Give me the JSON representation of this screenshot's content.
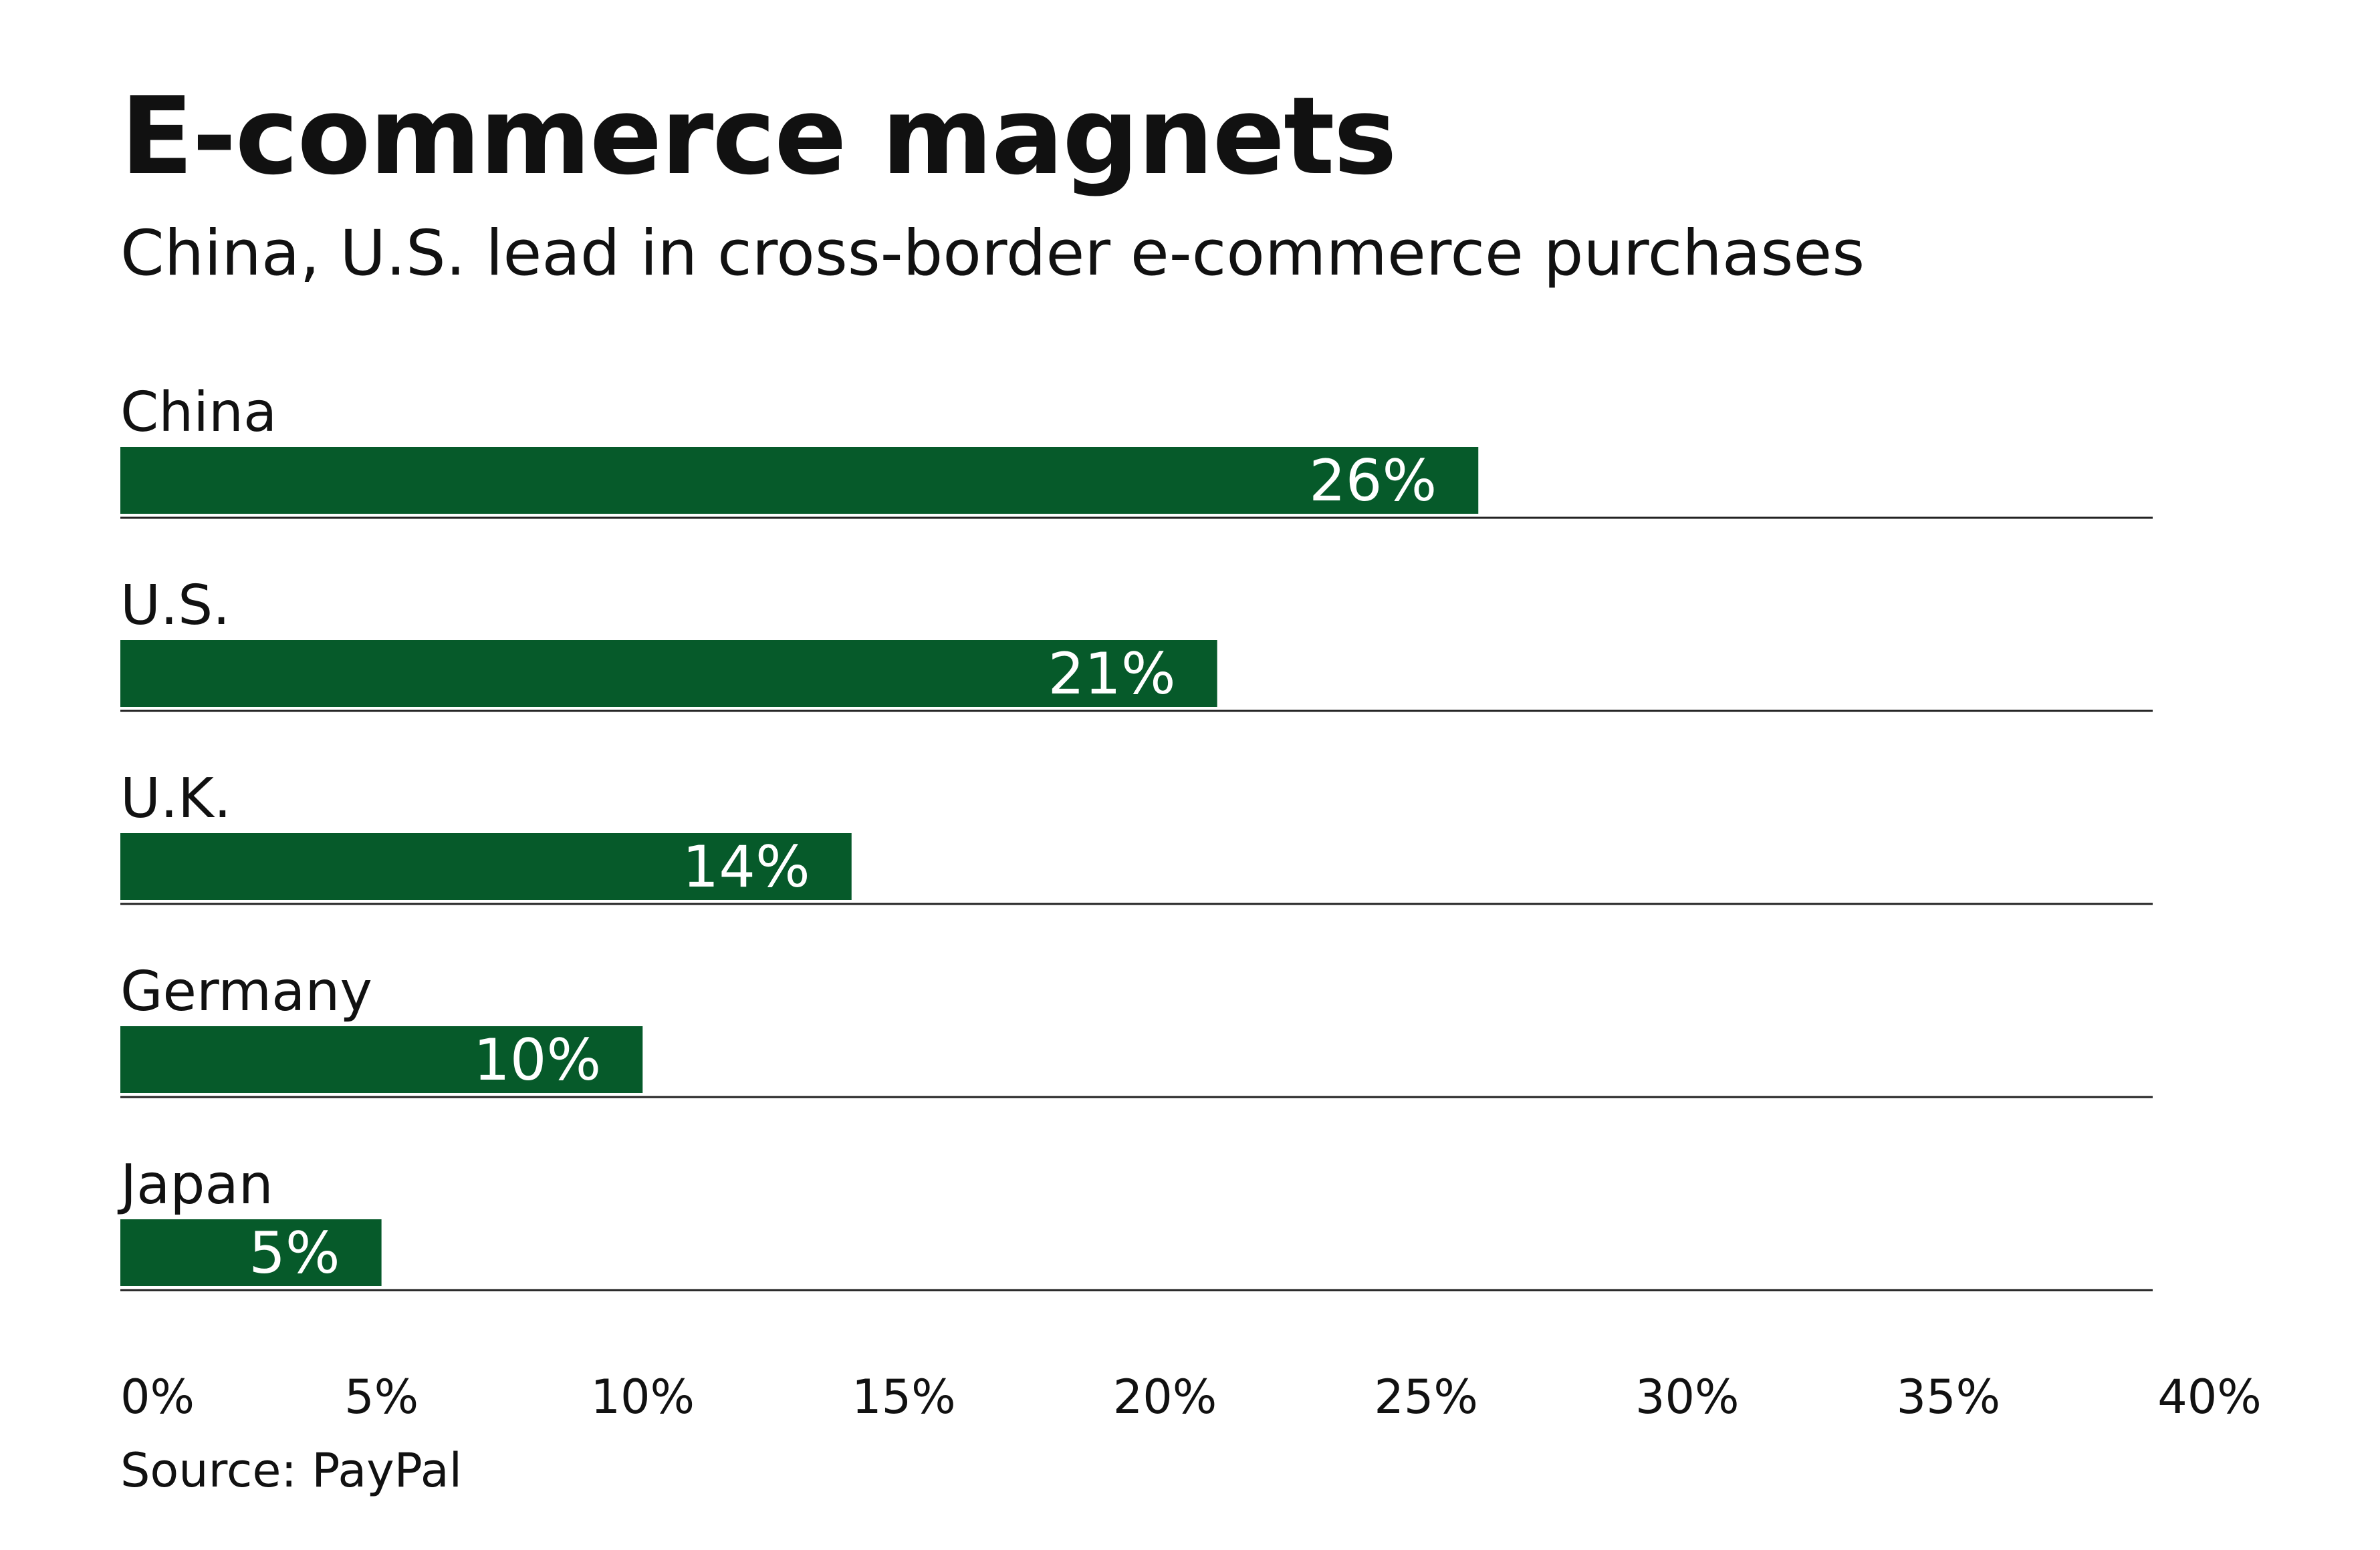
{
  "chart_data": {
    "type": "bar",
    "orientation": "horizontal",
    "title": "E-commerce magnets",
    "subtitle": "China, U.S. lead in cross-border e-commerce purchases",
    "categories": [
      "China",
      "U.S.",
      "U.K.",
      "Germany",
      "Japan"
    ],
    "values": [
      26,
      21,
      14,
      10,
      5
    ],
    "value_labels": [
      "26%",
      "21%",
      "14%",
      "10%",
      "5%"
    ],
    "x_ticks": [
      "0%",
      "5%",
      "10%",
      "15%",
      "20%",
      "25%",
      "30%",
      "35%",
      "40%"
    ],
    "xlim": [
      0,
      40
    ],
    "grid": false,
    "legend": "none",
    "source": "Source: PayPal",
    "colors": {
      "bar": "#065a2a",
      "bar_label": "#ffffff",
      "text": "#111111",
      "rule": "#222222"
    }
  }
}
